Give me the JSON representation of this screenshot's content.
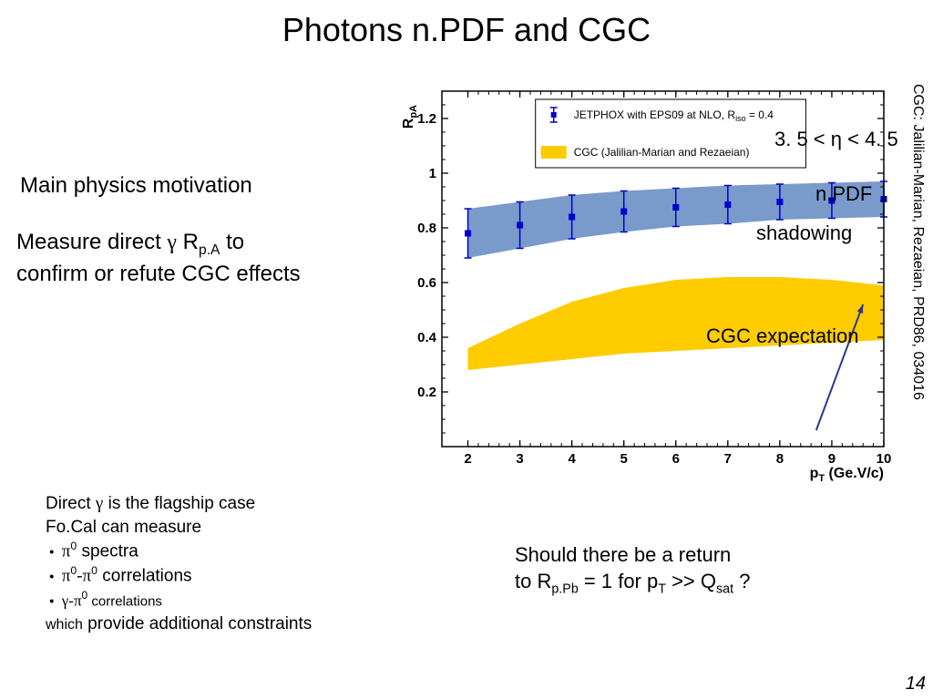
{
  "title": "Photons n.PDF and CGC",
  "citation": "CGC: Jalilian-Marian, Rezaeian, PRD86, 034016",
  "main_motivation": "Main physics motivation",
  "measure": {
    "line1_pre": "Measure direct ",
    "line1_gamma": "γ",
    "line1_mid": " R",
    "line1_sub": "p.A",
    "line1_post": " to",
    "line2": "confirm or refute CGC effects"
  },
  "direct": {
    "line1_pre": "Direct ",
    "line1_gamma": "γ",
    "line1_post": " is the flagship case",
    "line2": "Fo.Cal can measure",
    "bullet1_pre": "π",
    "bullet1_sup": "0",
    "bullet1_post": " spectra",
    "bullet2_pre": "π",
    "bullet2_sup1": "0",
    "bullet2_mid": "-π",
    "bullet2_sup2": "0",
    "bullet2_post": " correlations",
    "bullet3_pre": "γ",
    "bullet3_mid": "-π",
    "bullet3_sup": "0",
    "bullet3_post": " correlations",
    "which": "which",
    "which_post": " provide additional constraints"
  },
  "return_text": {
    "line1": "Should there be a return",
    "line2_pre": "to R",
    "line2_sub1": "p.Pb",
    "line2_mid": " = 1 for p",
    "line2_sub2": "T",
    "line2_mid2": " >> Q",
    "line2_sub3": "sat",
    "line2_post": " ?"
  },
  "overlay": {
    "eta_range": "3. 5 < η < 4. 5",
    "npdf": "n.PDF",
    "shadowing": "shadowing",
    "cgc_expect": "CGC expectation"
  },
  "legend": {
    "jetphox_pre": "JETPHOX with EPS09 at NLO, R",
    "jetphox_sub": "iso",
    "jetphox_post": " = 0.4",
    "cgc": "CGC (Jalilian-Marian and Rezaeian)"
  },
  "page_number": "14",
  "chart": {
    "xlim": [
      1.5,
      10
    ],
    "ylim": [
      0,
      1.3
    ],
    "xticks": [
      2,
      3,
      4,
      5,
      6,
      7,
      8,
      9,
      10
    ],
    "yticks": [
      0.2,
      0.4,
      0.6,
      0.8,
      1,
      1.2
    ],
    "ylabel": "R",
    "ylabel_sub": "pA",
    "xlabel_pre": "p",
    "xlabel_sub": "T",
    "xlabel_post": " (Ge.V/c)",
    "band_color": "#6188c2",
    "cgc_color": "#ffcc00",
    "marker_color": "#0000cc",
    "npdf_points_x": [
      2,
      3,
      4,
      5,
      6,
      7,
      8,
      9,
      10
    ],
    "npdf_mid": [
      0.78,
      0.81,
      0.84,
      0.86,
      0.875,
      0.885,
      0.895,
      0.9,
      0.905
    ],
    "npdf_half": [
      0.09,
      0.085,
      0.08,
      0.075,
      0.07,
      0.07,
      0.065,
      0.065,
      0.065
    ],
    "cgc_x": [
      2,
      3,
      4,
      5,
      6,
      7,
      8,
      9,
      10
    ],
    "cgc_top": [
      0.36,
      0.45,
      0.53,
      0.58,
      0.61,
      0.62,
      0.62,
      0.61,
      0.59
    ],
    "cgc_bottom": [
      0.28,
      0.3,
      0.32,
      0.34,
      0.35,
      0.36,
      0.37,
      0.38,
      0.39
    ]
  }
}
